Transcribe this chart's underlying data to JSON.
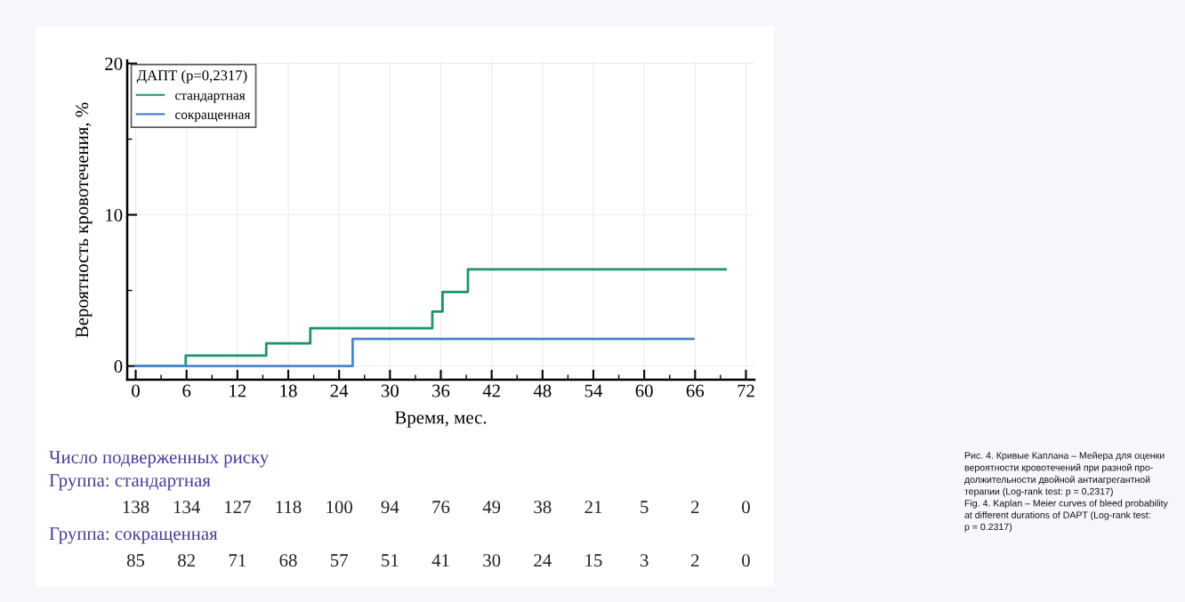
{
  "chart_data": {
    "type": "step",
    "xlabel": "Время, мес.",
    "ylabel": "Вероятность кровотечения, %",
    "legend_title": "ДАПТ (p=0,2317)",
    "legend": "top left",
    "grid": true,
    "series": [
      {
        "name": "стандартная",
        "color": "#1f9466",
        "x": [
          0,
          5.9,
          15.4,
          20.6,
          35.0,
          36.2,
          39.2,
          69.6
        ],
        "values": [
          0,
          0.7,
          1.5,
          2.5,
          3.6,
          4.9,
          6.4,
          6.4
        ]
      },
      {
        "name": "сокращенная",
        "color": "#4a86d0",
        "x": [
          0,
          25.6,
          65.8
        ],
        "values": [
          0,
          1.8,
          1.8
        ]
      }
    ],
    "xlim": [
      -1,
      73
    ],
    "ylim": [
      -0.9,
      20.2
    ],
    "xticks": [
      0,
      {
        "value": 3,
        "label": null
      },
      6,
      {
        "value": 9,
        "label": null
      },
      12,
      {
        "value": 15,
        "label": null
      },
      18,
      {
        "value": 21,
        "label": null
      },
      24,
      {
        "value": 27,
        "label": null
      },
      30,
      {
        "value": 33,
        "label": null
      },
      36,
      {
        "value": 39,
        "label": null
      },
      42,
      {
        "value": 45,
        "label": null
      },
      48,
      {
        "value": 51,
        "label": null
      },
      54,
      {
        "value": 57,
        "label": null
      },
      60,
      {
        "value": 63,
        "label": null
      },
      66,
      {
        "value": 69,
        "label": null
      },
      72
    ],
    "yticks": [
      0,
      {
        "value": 5,
        "label": null
      },
      10,
      {
        "value": 15,
        "label": null
      },
      20
    ],
    "annotations": [
      "Число подверженных риску",
      "Группа: стандартная",
      "138 134 127 118 100 94 76 49 38 21 5 2 0",
      "Группа: сокращенная",
      "85 82 71 68 57 51 41 30 24 15 3 2 0",
      "Рис. 4. Кривые Каплана – Мейера для оценки\nвероятности кровотечений при разной про-\nдолжительности двойной антиагрегантной\nтерапии (Log-rank test: p = 0,2317)\nFig. 4. Kaplan – Meier curves of bleed probability\nat different durations of DAPT (Log-rank test:\np = 0.2317)"
    ]
  }
}
